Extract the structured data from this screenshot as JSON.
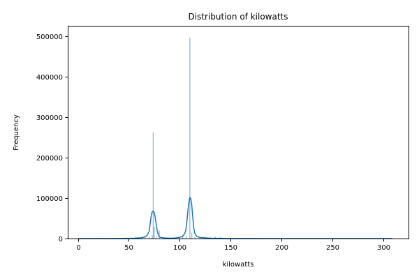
{
  "chart_data": {
    "type": "histogram",
    "title": "Distribution of kilowatts",
    "xlabel": "kilowatts",
    "ylabel": "Frequency",
    "xlim": [
      -10,
      325
    ],
    "ylim": [
      0,
      525000
    ],
    "x_ticks": [
      0,
      50,
      100,
      150,
      200,
      250,
      300
    ],
    "y_ticks": [
      0,
      100000,
      200000,
      300000,
      400000,
      500000
    ],
    "x_tick_labels": [
      "0",
      "50",
      "100",
      "150",
      "200",
      "250",
      "300"
    ],
    "y_tick_labels": [
      "0",
      "100000",
      "200000",
      "300000",
      "400000",
      "500000"
    ],
    "grid": false,
    "colors": {
      "series": "#1f77b4"
    },
    "histogram_bins": [
      {
        "x": 55,
        "count": 1500
      },
      {
        "x": 63,
        "count": 2000
      },
      {
        "x": 66,
        "count": 6000
      },
      {
        "x": 70,
        "count": 4000
      },
      {
        "x": 73,
        "count": 8000
      },
      {
        "x": 74,
        "count": 262000
      },
      {
        "x": 75,
        "count": 30000
      },
      {
        "x": 77,
        "count": 5000
      },
      {
        "x": 80,
        "count": 20000
      },
      {
        "x": 85,
        "count": 3000
      },
      {
        "x": 90,
        "count": 2500
      },
      {
        "x": 96,
        "count": 2000
      },
      {
        "x": 100,
        "count": 3000
      },
      {
        "x": 103,
        "count": 8000
      },
      {
        "x": 107,
        "count": 6000
      },
      {
        "x": 110,
        "count": 496000
      },
      {
        "x": 112,
        "count": 15000
      },
      {
        "x": 115,
        "count": 4000
      },
      {
        "x": 120,
        "count": 3000
      },
      {
        "x": 125,
        "count": 4000
      },
      {
        "x": 130,
        "count": 3000
      },
      {
        "x": 135,
        "count": 5000
      },
      {
        "x": 140,
        "count": 3500
      },
      {
        "x": 147,
        "count": 1500
      },
      {
        "x": 160,
        "count": 800
      }
    ],
    "kde_curve": {
      "x": [
        0,
        20,
        40,
        55,
        62,
        66,
        68,
        70,
        71,
        72,
        73,
        74,
        75,
        76,
        77,
        78,
        79,
        80,
        82,
        85,
        90,
        95,
        100,
        103,
        105,
        106,
        107,
        108,
        109,
        110,
        111,
        112,
        113,
        114,
        115,
        117,
        120,
        130,
        150,
        200,
        250,
        309
      ],
      "y": [
        0,
        0,
        200,
        800,
        2000,
        4000,
        8000,
        18000,
        35000,
        55000,
        66000,
        68000,
        64000,
        52000,
        35000,
        18000,
        9000,
        4500,
        2500,
        1500,
        900,
        1200,
        3000,
        6000,
        12000,
        20000,
        38000,
        65000,
        88000,
        101000,
        99000,
        80000,
        50000,
        25000,
        12000,
        5000,
        2500,
        800,
        200,
        0,
        0,
        0
      ]
    }
  }
}
